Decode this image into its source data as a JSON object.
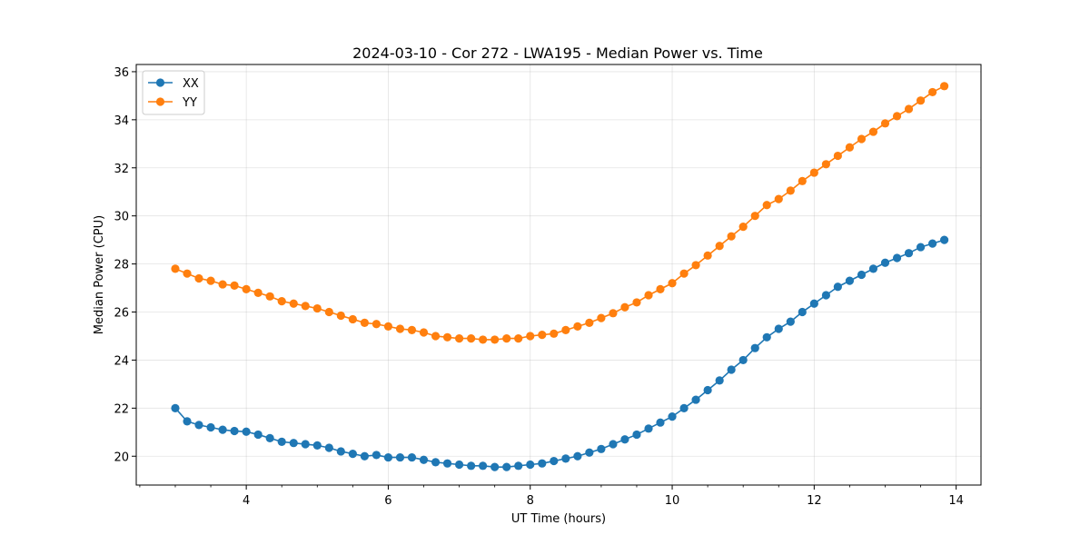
{
  "chart_data": {
    "type": "line",
    "title": "2024-03-10 - Cor 272 - LWA195 - Median Power vs. Time",
    "xlabel": "UT Time (hours)",
    "ylabel": "Median Power (CPU)",
    "xlim": [
      2.45,
      14.35
    ],
    "ylim": [
      18.8,
      36.3
    ],
    "xticks": [
      4,
      6,
      8,
      10,
      12,
      14
    ],
    "yticks": [
      20,
      22,
      24,
      26,
      28,
      30,
      32,
      34,
      36
    ],
    "x_minor_step": 0.5,
    "grid": true,
    "legend_position": "upper-left",
    "x": [
      3.0,
      3.167,
      3.333,
      3.5,
      3.667,
      3.833,
      4.0,
      4.167,
      4.333,
      4.5,
      4.667,
      4.833,
      5.0,
      5.167,
      5.333,
      5.5,
      5.667,
      5.833,
      6.0,
      6.167,
      6.333,
      6.5,
      6.667,
      6.833,
      7.0,
      7.167,
      7.333,
      7.5,
      7.667,
      7.833,
      8.0,
      8.167,
      8.333,
      8.5,
      8.667,
      8.833,
      9.0,
      9.167,
      9.333,
      9.5,
      9.667,
      9.833,
      10.0,
      10.167,
      10.333,
      10.5,
      10.667,
      10.833,
      11.0,
      11.167,
      11.333,
      11.5,
      11.667,
      11.833,
      12.0,
      12.167,
      12.333,
      12.5,
      12.667,
      12.833,
      13.0,
      13.167,
      13.333,
      13.5,
      13.667,
      13.833
    ],
    "series": [
      {
        "name": "XX",
        "color": "#1f77b4",
        "values": [
          22.0,
          21.45,
          21.3,
          21.2,
          21.1,
          21.05,
          21.02,
          20.9,
          20.75,
          20.6,
          20.55,
          20.5,
          20.45,
          20.35,
          20.2,
          20.1,
          20.0,
          20.05,
          19.95,
          19.95,
          19.95,
          19.85,
          19.75,
          19.7,
          19.65,
          19.6,
          19.6,
          19.55,
          19.55,
          19.6,
          19.65,
          19.7,
          19.8,
          19.9,
          20.0,
          20.15,
          20.3,
          20.5,
          20.7,
          20.9,
          21.15,
          21.4,
          21.65,
          22.0,
          22.35,
          22.75,
          23.15,
          23.6,
          24.0,
          24.5,
          24.95,
          25.3,
          25.6,
          26.0,
          26.35,
          26.7,
          27.05,
          27.3,
          27.55,
          27.8,
          28.05,
          28.25,
          28.45,
          28.7,
          28.85,
          29.0
        ]
      },
      {
        "name": "YY",
        "color": "#ff7f0e",
        "values": [
          27.8,
          27.6,
          27.4,
          27.3,
          27.15,
          27.1,
          26.95,
          26.8,
          26.65,
          26.45,
          26.35,
          26.25,
          26.15,
          26.0,
          25.85,
          25.7,
          25.55,
          25.5,
          25.4,
          25.3,
          25.25,
          25.15,
          25.0,
          24.95,
          24.9,
          24.9,
          24.85,
          24.85,
          24.9,
          24.9,
          25.0,
          25.05,
          25.1,
          25.25,
          25.4,
          25.55,
          25.75,
          25.95,
          26.2,
          26.4,
          26.7,
          26.95,
          27.2,
          27.6,
          27.95,
          28.35,
          28.75,
          29.15,
          29.55,
          30.0,
          30.45,
          30.7,
          31.05,
          31.45,
          31.8,
          32.15,
          32.5,
          32.85,
          33.2,
          33.5,
          33.85,
          34.15,
          34.45,
          34.8,
          35.15,
          35.4
        ]
      }
    ]
  }
}
